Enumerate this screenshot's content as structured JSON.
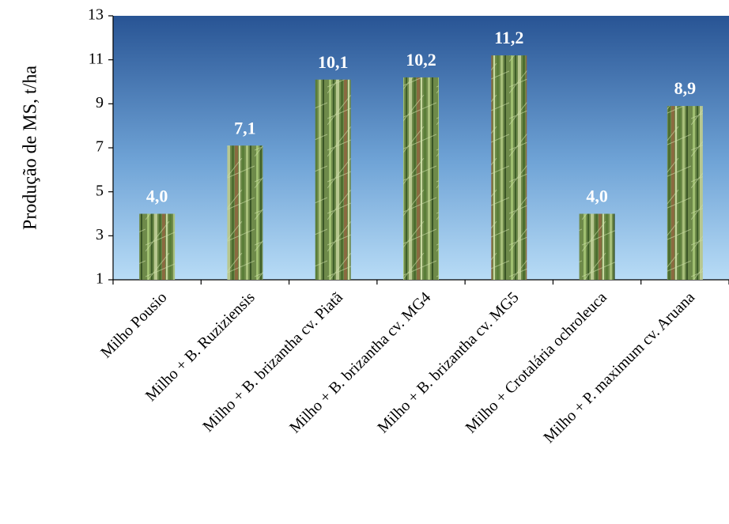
{
  "chart_data": {
    "type": "bar",
    "y_label": "Produção de MS, t/ha",
    "categories": [
      "Milho Pousio",
      "Milho + B. Ruziziensis",
      "Milho + B. brizantha cv. Piatã",
      "Milho + B. brizantha cv. MG4",
      "Milho + B. brizantha cv. MG5",
      "Milho + Crotalária ochroleuca",
      "Milho + P. maximum cv. Aruana"
    ],
    "values": [
      4.0,
      7.1,
      10.1,
      10.2,
      11.2,
      4.0,
      8.9
    ],
    "value_labels": [
      "4,0",
      "7,1",
      "10,1",
      "10,2",
      "11,2",
      "4,0",
      "8,9"
    ],
    "ylim": [
      1,
      13
    ],
    "yticks": [
      1,
      3,
      5,
      7,
      9,
      11,
      13
    ]
  }
}
